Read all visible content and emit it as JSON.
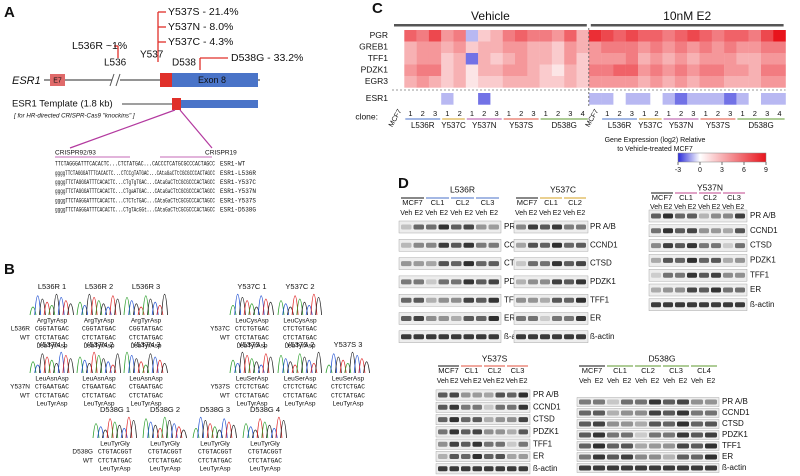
{
  "panel_a": {
    "label": "A",
    "gene": "ESR1",
    "exon7": "E7",
    "exon8": "Exon 8",
    "mutations": [
      "Y537S - 21.4%",
      "Y537N - 8.0%",
      "Y537C - 4.3%",
      "D538G - 33.2%",
      "L536R ~1%"
    ],
    "residues": [
      "L536",
      "Y537",
      "D538"
    ],
    "template": "ESR1 Template (1.8 kb)",
    "template_note": "[ for HR-directed CRISPR-Cas9 \"knockins\" ]",
    "guides": [
      "CRISPR92/93",
      "CRISPR19"
    ],
    "sequences": [
      {
        "seq": "TTCTAGGGATTTCACACTC...CTCTATGAC...CACCCTCATGCGCCCACTAGCC",
        "name": "ESR1-WT"
      },
      {
        "seq": "ggggTTCTAGGGATTTCACACTC...CTCCgTATGAC...CAtaGaCTtCGCGCCCACTAGCC",
        "name": "ESR1-L536R"
      },
      {
        "seq": "ggggTTCTAGGGATTTCACACTC...CTgTgTGAC...CAtaGaCTtCGCGCCCACTAGCC",
        "name": "ESR1-Y537C"
      },
      {
        "seq": "ggggTTCTAGGGATTTCACACTC...CTgaATGAC...CAtaGaCTtCGCGCCCACTAGCC",
        "name": "ESR1-Y537N"
      },
      {
        "seq": "ggggTTCTAGGGATTTCACACTC...CTCTcTGAC...CAtaGaCTtCGCGCCCACTAGCC",
        "name": "ESR1-Y537S"
      },
      {
        "seq": "ggggTTCTAGGGATTTCACACTC...CTgTAcGGt...CAtaGaCTtCGCGCCCACTAGCC",
        "name": "ESR1-D538G"
      }
    ]
  },
  "panel_b": {
    "label": "B",
    "wt_label": "WT",
    "groups": [
      {
        "name": "L536R",
        "mut_seq": "CGGTATGAC",
        "mut_aa": "ArgTyrAsp",
        "wt_seq": "CTCTATGAC",
        "wt_aa": "LeuTyrAsp",
        "clones": [
          "L536R 1",
          "L536R 2",
          "L536R 3"
        ]
      },
      {
        "name": "Y537C",
        "mut_seq": "CTCTGTGAC",
        "mut_aa": "LeuCysAsp",
        "wt_seq": "CTCTATGAC",
        "wt_aa": "LeuTyrAsp",
        "clones": [
          "Y537C 1",
          "Y537C 2"
        ]
      },
      {
        "name": "Y537N",
        "mut_seq": "CTGAATGAC",
        "mut_aa": "LeuAsnAsp",
        "wt_seq": "CTCTATGAC",
        "wt_aa": "LeuTyrAsp",
        "clones": [
          "Y537N 1",
          "Y537N 2",
          "Y537N 3"
        ]
      },
      {
        "name": "Y537S",
        "mut_seq": "CTCTCTGAC",
        "mut_aa": "LeuSerAsp",
        "wt_seq": "CTCTATGAC",
        "wt_aa": "LeuTyrAsp",
        "clones": [
          "Y537S 1",
          "Y537S 2",
          "Y537S 3"
        ]
      },
      {
        "name": "D538G",
        "mut_seq": "CTGTACGGT",
        "mut_aa": "LeuTyrGly",
        "wt_seq": "CTCTATGAC",
        "wt_aa": "LeuTyrAsp",
        "clones": [
          "D538G 1",
          "D538G 2",
          "D538G 3",
          "D538G 4"
        ]
      }
    ]
  },
  "chart_data": {
    "type": "heatmap",
    "panel_label": "C",
    "treatments": [
      "Vehicle",
      "10nM E2"
    ],
    "rows": [
      "PGR",
      "GREB1",
      "TFF1",
      "PDZK1",
      "EGR3",
      "ESR1"
    ],
    "x_label": "clone:",
    "control": "MCF7",
    "groups": [
      {
        "name": "L536R",
        "color": "#4a72c8",
        "clones": [
          "1",
          "2",
          "3"
        ]
      },
      {
        "name": "Y537C",
        "color": "#d4a020",
        "clones": [
          "1",
          "2"
        ]
      },
      {
        "name": "Y537N",
        "color": "#b44fa6",
        "clones": [
          "1",
          "2",
          "3"
        ]
      },
      {
        "name": "Y537S",
        "color": "#e0503c",
        "clones": [
          "1",
          "2",
          "3"
        ]
      },
      {
        "name": "D538G",
        "color": "#5e9a2e",
        "clones": [
          "1",
          "2",
          "3",
          "4"
        ]
      }
    ],
    "values": [
      [
        0,
        6,
        5,
        7,
        4,
        5,
        -1,
        2,
        3,
        5,
        6,
        5,
        5,
        4,
        6,
        3,
        8,
        7,
        6,
        7,
        6,
        6,
        5,
        6,
        7,
        6,
        5,
        6,
        6,
        5,
        7,
        9
      ],
      [
        0,
        3,
        4,
        4,
        3,
        4,
        2,
        3,
        3,
        4,
        4,
        3,
        3,
        2,
        4,
        3,
        4,
        5,
        5,
        5,
        4,
        5,
        4,
        5,
        4,
        5,
        4,
        5,
        4,
        4,
        5,
        5
      ],
      [
        0,
        3,
        4,
        4,
        2,
        3,
        -2,
        3,
        2,
        3,
        4,
        3,
        3,
        2,
        4,
        2,
        4,
        4,
        4,
        5,
        3,
        4,
        3,
        4,
        3,
        4,
        4,
        4,
        3,
        3,
        4,
        4
      ],
      [
        0,
        4,
        5,
        5,
        2,
        3,
        1,
        3,
        3,
        4,
        4,
        3,
        2,
        1,
        3,
        2,
        5,
        5,
        6,
        6,
        4,
        5,
        4,
        5,
        4,
        5,
        5,
        4,
        4,
        3,
        5,
        5
      ],
      [
        0,
        3,
        4,
        3,
        2,
        3,
        1,
        2,
        2,
        3,
        3,
        3,
        2,
        2,
        3,
        2,
        4,
        4,
        4,
        4,
        3,
        4,
        3,
        4,
        3,
        4,
        4,
        3,
        3,
        3,
        4,
        4
      ],
      [
        0,
        0,
        0,
        0,
        -1,
        0,
        0,
        -2,
        0,
        0,
        0,
        0,
        0,
        0,
        0,
        0,
        -1,
        -1,
        0,
        -1,
        -1,
        0,
        -1,
        -2,
        -1,
        -1,
        -1,
        -2,
        -1,
        0,
        -1,
        -1
      ]
    ],
    "colorbar": {
      "label": [
        "Gene Expression (log2) Relative",
        "to Vehicle-treated MCF7"
      ],
      "lim": [
        -3,
        9
      ],
      "ticks": [
        -3,
        0,
        3,
        6,
        9
      ],
      "colors": [
        "#2b2bd9",
        "#ffffff",
        "#e8141c"
      ]
    }
  },
  "panel_d": {
    "label": "D",
    "blots": [
      {
        "mutant": "L536R",
        "color": "#4a72c8",
        "groups": [
          "MCF7",
          "CL1",
          "CL2",
          "CL3"
        ],
        "lanes": [
          "Veh",
          "E2"
        ],
        "proteins": [
          "PR A/B",
          "CCND1",
          "CTSD",
          "PDZK1",
          "TFF1",
          "ER",
          "ß-actin"
        ]
      },
      {
        "mutant": "Y537C",
        "color": "#d4a020",
        "groups": [
          "MCF7",
          "CL1",
          "CL2"
        ],
        "lanes": [
          "Veh",
          "E2"
        ],
        "proteins": [
          "PR A/B",
          "CCND1",
          "CTSD",
          "PDZK1",
          "TFF1",
          "ER",
          "ß-actin"
        ]
      },
      {
        "mutant": "Y537N",
        "color": "#c2448e",
        "groups": [
          "MCF7",
          "CL1",
          "CL2",
          "CL3"
        ],
        "lanes": [
          "Veh",
          "E2"
        ],
        "proteins": [
          "PR A/B",
          "CCND1",
          "CTSD",
          "PDZK1",
          "TFF1",
          "ER",
          "ß-actin"
        ]
      },
      {
        "mutant": "Y537S",
        "color": "#e0503c",
        "groups": [
          "MCF7",
          "CL1",
          "CL2",
          "CL3"
        ],
        "lanes": [
          "Veh",
          "E2"
        ],
        "proteins": [
          "PR A/B",
          "CCND1",
          "CTSD",
          "PDZK1",
          "TFF1",
          "ER",
          "ß-actin"
        ]
      },
      {
        "mutant": "D538G",
        "color": "#5e9a2e",
        "groups": [
          "MCF7",
          "CL1",
          "CL2",
          "CL3",
          "CL4"
        ],
        "lanes": [
          "Veh",
          "E2"
        ],
        "proteins": [
          "PR A/B",
          "CCND1",
          "CTSD",
          "PDZK1",
          "TFF1",
          "ER",
          "ß-actin"
        ]
      }
    ]
  }
}
